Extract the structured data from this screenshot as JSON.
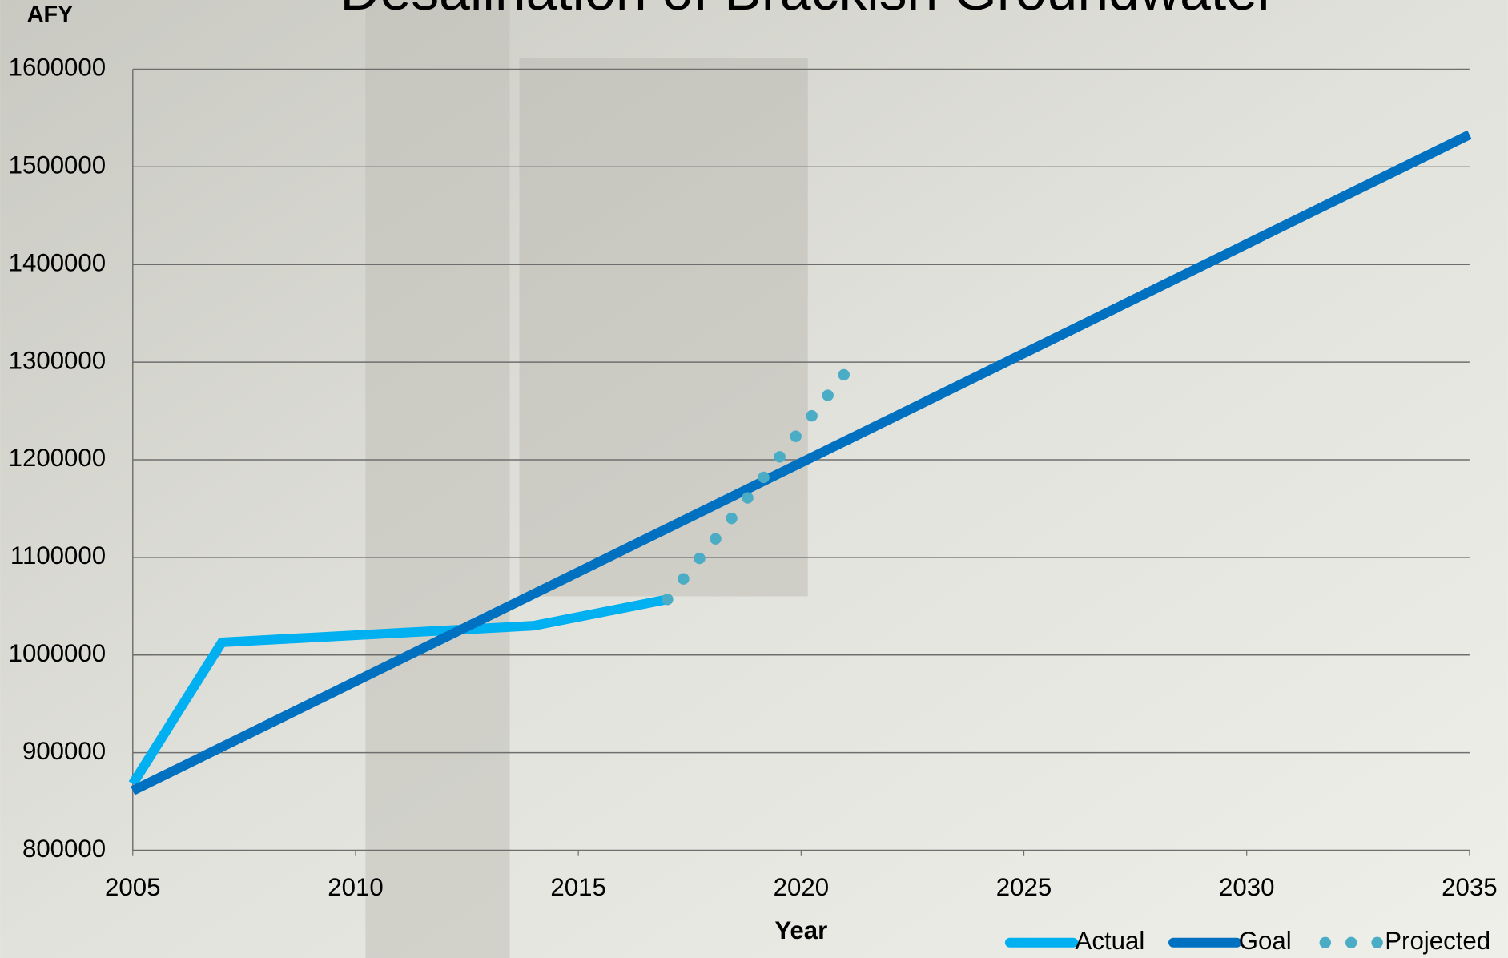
{
  "chart_data": {
    "type": "line",
    "title": "Desalination of Brackish Groundwater",
    "y_label": "AFY",
    "x_label": "Year",
    "xlim": [
      2005,
      2035
    ],
    "xticks": [
      2005,
      2010,
      2015,
      2020,
      2025,
      2030,
      2035
    ],
    "ylim": [
      800000,
      1600000
    ],
    "yticks": [
      800000,
      900000,
      1000000,
      1100000,
      1200000,
      1300000,
      1400000,
      1500000,
      1600000
    ],
    "grid": true,
    "legend": "bottom-right",
    "series": [
      {
        "name": "Actual",
        "color": "#00b0f0",
        "style": "solid",
        "x": [
          2005,
          2007,
          2014,
          2017
        ],
        "values": [
          868000,
          1013000,
          1030000,
          1057000
        ]
      },
      {
        "name": "Goal",
        "color": "#0070c0",
        "style": "solid",
        "x": [
          2005,
          2035
        ],
        "values": [
          861000,
          1533000
        ]
      },
      {
        "name": "Projected",
        "color": "#4bacc6",
        "style": "dots",
        "x": [
          2017,
          2017.36,
          2017.72,
          2018.08,
          2018.44,
          2018.8,
          2019.16,
          2019.52,
          2019.88,
          2020.24,
          2020.6,
          2020.96
        ],
        "values": [
          1057000,
          1078000,
          1099000,
          1119000,
          1140000,
          1161000,
          1182000,
          1203000,
          1224000,
          1245000,
          1266000,
          1287000
        ]
      }
    ]
  }
}
